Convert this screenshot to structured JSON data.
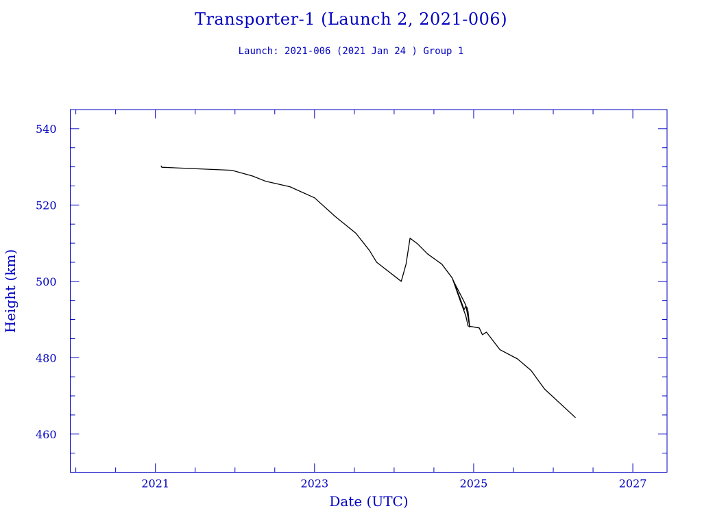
{
  "chart_data": {
    "type": "line",
    "title": "Transporter-1 (Launch 2, 2021-006)",
    "subtitle": "Launch: 2021-006  (2021 Jan 24 )  Group 1",
    "xlabel": "Date (UTC)",
    "ylabel": "Height (km)",
    "xlim": [
      2019.93,
      2027.43
    ],
    "ylim": [
      450,
      545
    ],
    "xticks": [
      2021,
      2023,
      2025,
      2027
    ],
    "xtick_labels": [
      "2021",
      "2023",
      "2025",
      "2027"
    ],
    "yticks": [
      460,
      480,
      500,
      520,
      540
    ],
    "ytick_labels": [
      "460",
      "480",
      "500",
      "520",
      "540"
    ],
    "x_minor_step": 0.5,
    "y_minor_step": 5,
    "grid": false,
    "axis_color": "#0000c0",
    "line_color": "#000000",
    "series": [
      {
        "name": "Height",
        "x": [
          2021.07,
          2021.08,
          2021.61,
          2021.96,
          2022.22,
          2022.39,
          2022.69,
          2023.0,
          2023.26,
          2023.52,
          2023.69,
          2023.78,
          2024.09,
          2024.15,
          2024.2,
          2024.29,
          2024.42,
          2024.6,
          2024.73,
          2024.83,
          2024.88,
          2024.9,
          2024.92,
          2024.93,
          2024.95,
          2024.93,
          2024.9,
          2024.86,
          2024.76,
          2024.73,
          2024.83,
          2024.9,
          2024.93,
          2025.07,
          2025.11,
          2025.16,
          2025.33,
          2025.55,
          2025.72,
          2025.89,
          2026.28
        ],
        "y": [
          530.3,
          529.9,
          529.4,
          529.1,
          527.6,
          526.2,
          524.8,
          521.9,
          517.0,
          512.6,
          508.1,
          505.0,
          500.0,
          504.5,
          511.3,
          509.9,
          507.2,
          504.5,
          500.9,
          495.5,
          492.6,
          493.5,
          493.0,
          492.0,
          488.0,
          490.5,
          493.8,
          495.5,
          499.5,
          500.9,
          495.0,
          491.0,
          488.3,
          487.8,
          486.0,
          486.7,
          482.1,
          479.7,
          476.7,
          471.8,
          464.3
        ]
      }
    ]
  }
}
